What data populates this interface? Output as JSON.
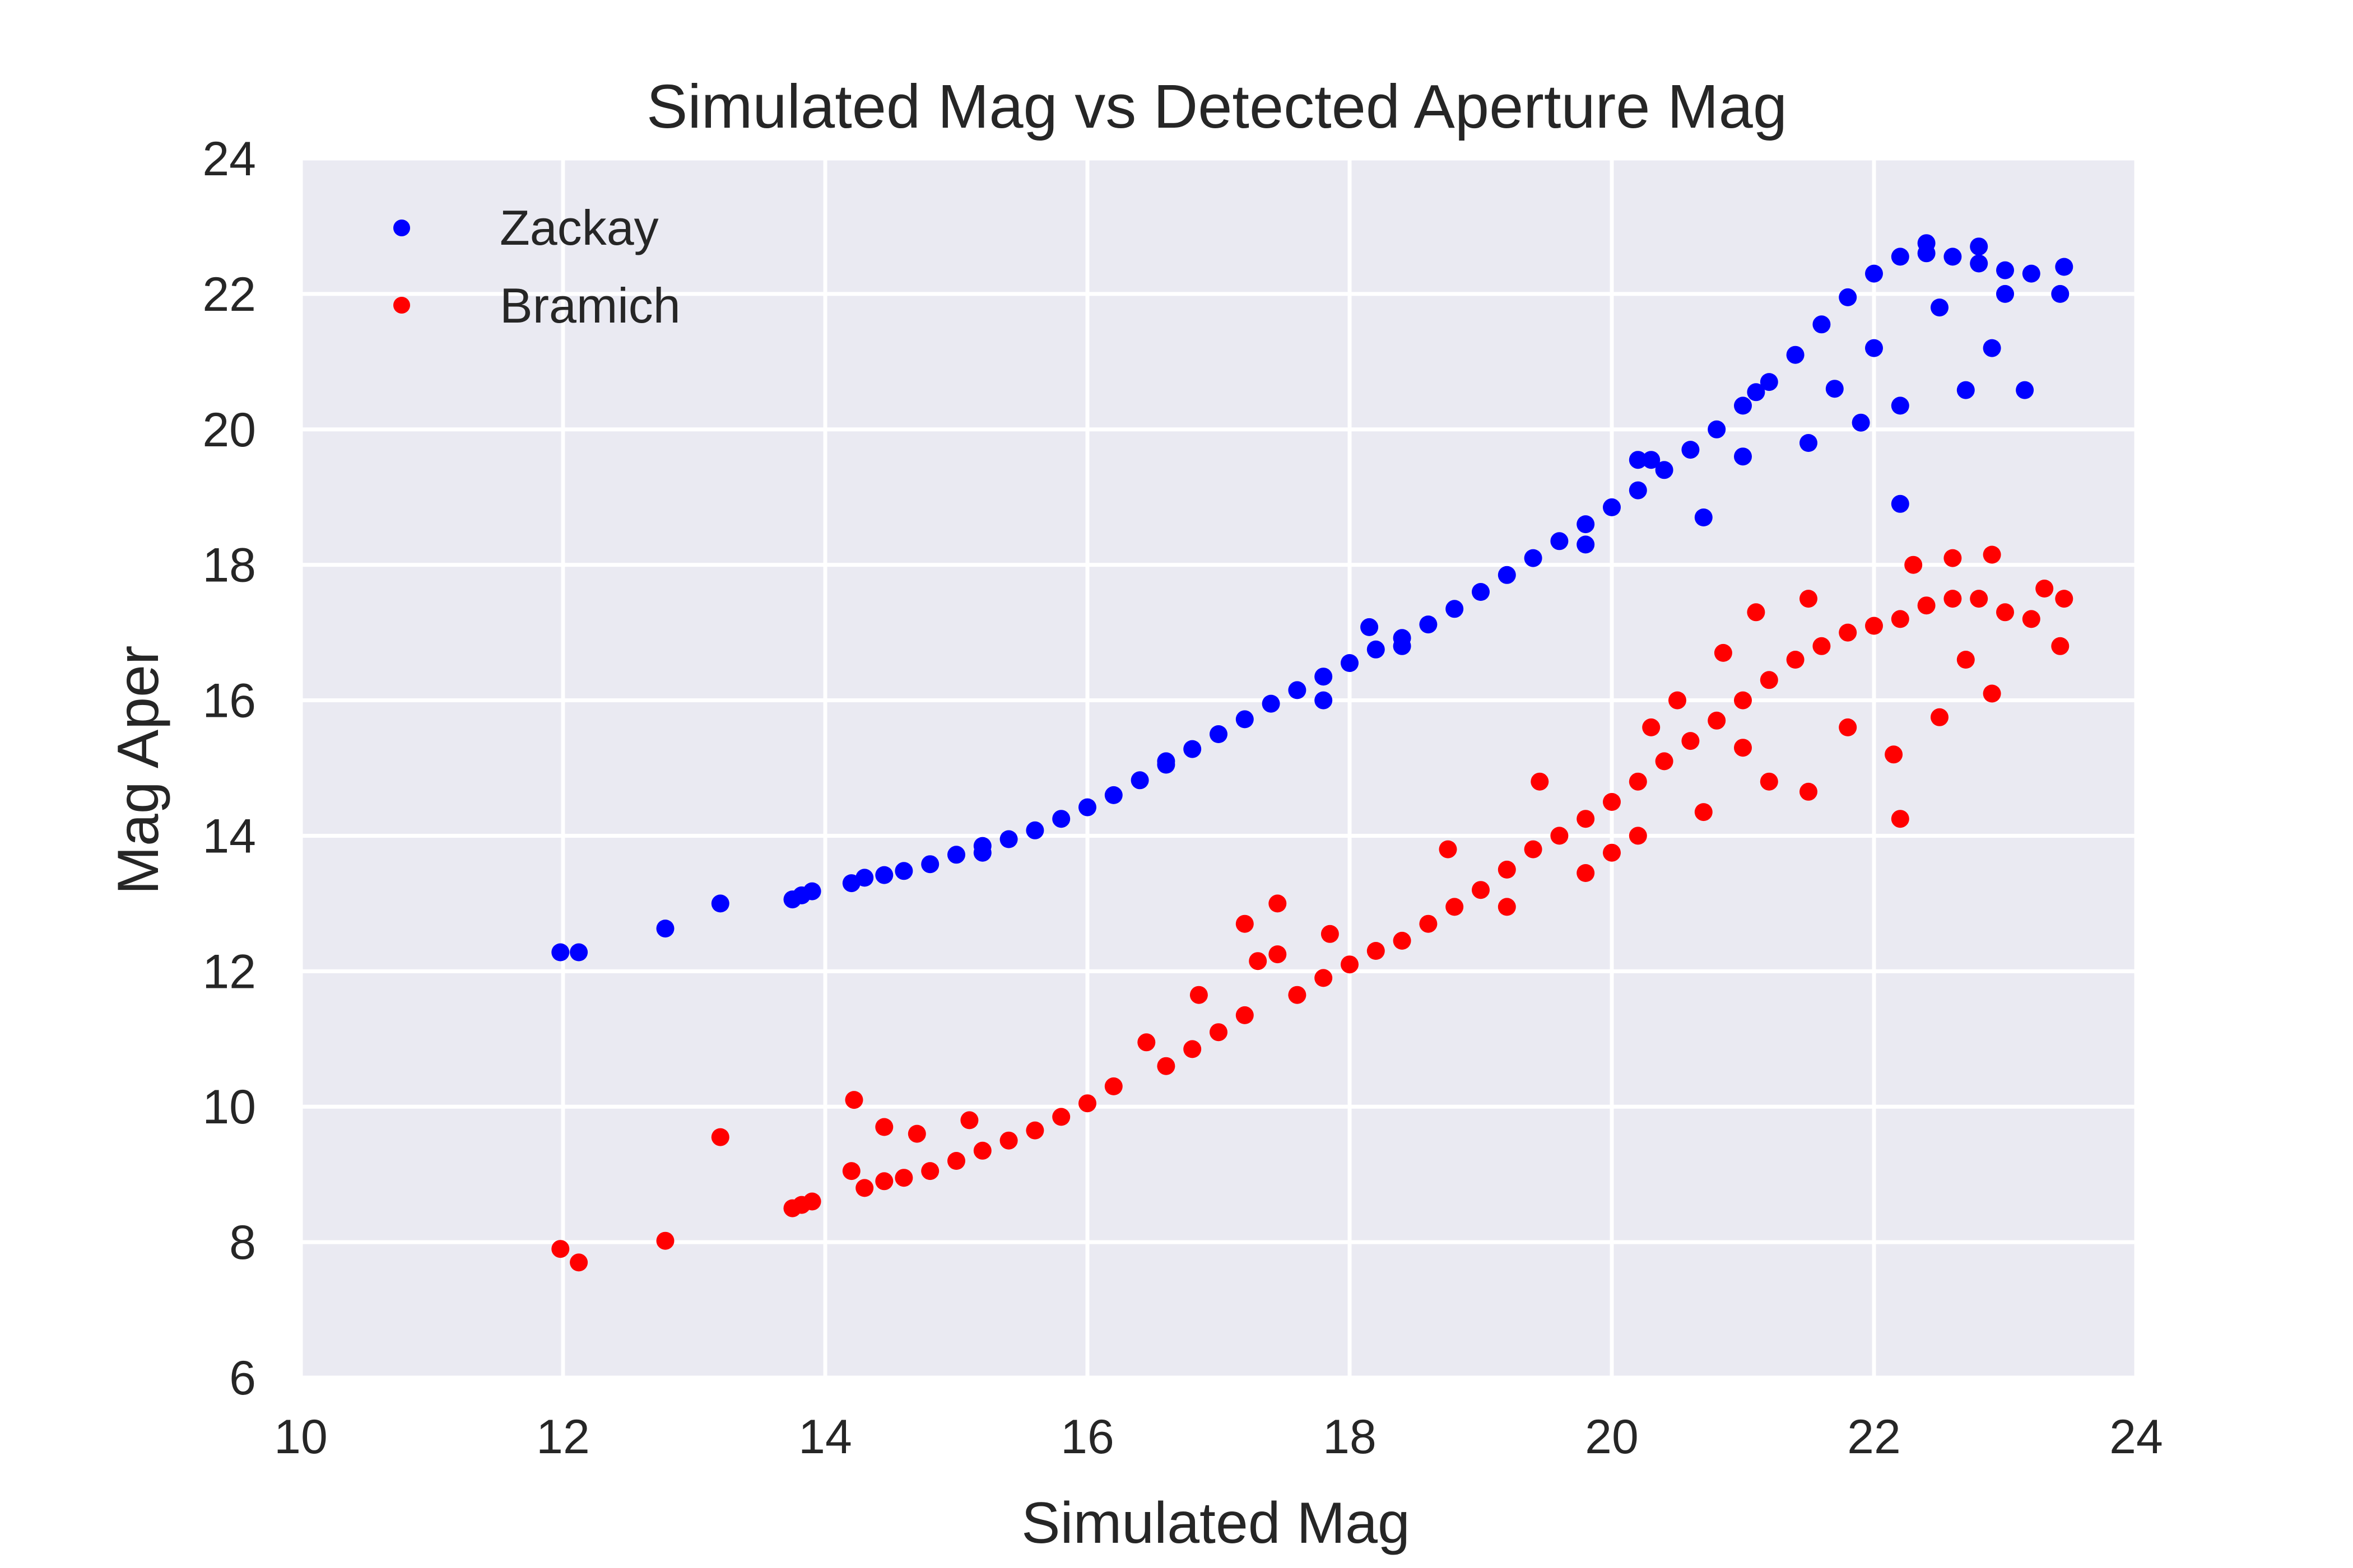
{
  "chart_data": {
    "type": "scatter",
    "title": "Simulated Mag vs Detected Aperture Mag",
    "xlabel": "Simulated Mag",
    "ylabel": "Mag Aper",
    "xlim": [
      10,
      24
    ],
    "ylim": [
      6,
      24
    ],
    "xticks": [
      "10",
      "12",
      "14",
      "16",
      "18",
      "20",
      "22",
      "24"
    ],
    "yticks": [
      "6",
      "8",
      "10",
      "12",
      "14",
      "16",
      "18",
      "20",
      "22",
      "24"
    ],
    "grid": true,
    "legend_position": "top-left",
    "background": "#eaeaf2",
    "series": [
      {
        "name": "Zackay",
        "color": "#0000ff",
        "points": [
          [
            11.98,
            12.28
          ],
          [
            12.12,
            12.28
          ],
          [
            12.78,
            12.63
          ],
          [
            13.2,
            13.0
          ],
          [
            13.75,
            13.06
          ],
          [
            13.82,
            13.12
          ],
          [
            13.9,
            13.18
          ],
          [
            14.2,
            13.3
          ],
          [
            14.3,
            13.38
          ],
          [
            14.45,
            13.42
          ],
          [
            14.6,
            13.48
          ],
          [
            14.8,
            13.58
          ],
          [
            15.0,
            13.72
          ],
          [
            15.2,
            13.85
          ],
          [
            15.4,
            13.95
          ],
          [
            15.6,
            14.08
          ],
          [
            15.8,
            14.25
          ],
          [
            16.0,
            14.42
          ],
          [
            16.2,
            14.6
          ],
          [
            16.4,
            14.82
          ],
          [
            16.6,
            15.05
          ],
          [
            16.8,
            15.28
          ],
          [
            17.0,
            15.5
          ],
          [
            17.2,
            15.72
          ],
          [
            17.4,
            15.95
          ],
          [
            17.6,
            16.15
          ],
          [
            17.8,
            16.35
          ],
          [
            18.0,
            16.55
          ],
          [
            18.2,
            16.75
          ],
          [
            18.15,
            17.08
          ],
          [
            18.4,
            16.92
          ],
          [
            18.6,
            17.12
          ],
          [
            18.8,
            17.35
          ],
          [
            19.0,
            17.6
          ],
          [
            19.2,
            17.85
          ],
          [
            19.4,
            18.1
          ],
          [
            19.6,
            18.35
          ],
          [
            19.8,
            18.6
          ],
          [
            20.0,
            18.85
          ],
          [
            20.2,
            19.1
          ],
          [
            20.4,
            19.4
          ],
          [
            20.2,
            19.55
          ],
          [
            20.6,
            19.7
          ],
          [
            20.8,
            20.0
          ],
          [
            21.0,
            20.35
          ],
          [
            21.2,
            20.7
          ],
          [
            21.4,
            21.1
          ],
          [
            21.6,
            21.55
          ],
          [
            21.8,
            21.95
          ],
          [
            22.0,
            22.3
          ],
          [
            22.2,
            22.55
          ],
          [
            22.4,
            22.6
          ],
          [
            22.6,
            22.55
          ],
          [
            22.8,
            22.45
          ],
          [
            23.0,
            22.35
          ],
          [
            23.2,
            22.3
          ],
          [
            23.45,
            22.4
          ],
          [
            23.42,
            22.0
          ],
          [
            22.2,
            18.9
          ],
          [
            23.15,
            20.58
          ],
          [
            22.7,
            20.58
          ],
          [
            21.9,
            20.1
          ],
          [
            22.2,
            20.35
          ],
          [
            21.5,
            19.8
          ],
          [
            20.7,
            18.7
          ],
          [
            18.4,
            16.8
          ],
          [
            17.8,
            16.0
          ],
          [
            16.6,
            15.1
          ],
          [
            15.2,
            13.75
          ],
          [
            19.8,
            18.3
          ],
          [
            21.0,
            19.6
          ],
          [
            21.7,
            20.6
          ],
          [
            22.0,
            21.2
          ],
          [
            22.5,
            21.8
          ],
          [
            22.9,
            21.2
          ],
          [
            23.0,
            22.0
          ],
          [
            22.8,
            22.7
          ],
          [
            22.4,
            22.75
          ],
          [
            21.1,
            20.55
          ],
          [
            20.3,
            19.55
          ]
        ]
      },
      {
        "name": "Bramich",
        "color": "#ff0000",
        "points": [
          [
            11.98,
            7.9
          ],
          [
            12.12,
            7.7
          ],
          [
            12.78,
            8.02
          ],
          [
            13.2,
            9.55
          ],
          [
            13.75,
            8.5
          ],
          [
            13.82,
            8.55
          ],
          [
            13.9,
            8.6
          ],
          [
            14.2,
            9.05
          ],
          [
            14.22,
            10.1
          ],
          [
            14.3,
            8.8
          ],
          [
            14.45,
            9.7
          ],
          [
            14.45,
            8.9
          ],
          [
            14.6,
            8.95
          ],
          [
            14.7,
            9.6
          ],
          [
            14.8,
            9.05
          ],
          [
            15.0,
            9.2
          ],
          [
            15.1,
            9.8
          ],
          [
            15.2,
            9.35
          ],
          [
            15.4,
            9.5
          ],
          [
            15.6,
            9.65
          ],
          [
            15.8,
            9.85
          ],
          [
            16.0,
            10.05
          ],
          [
            16.2,
            10.3
          ],
          [
            16.45,
            10.95
          ],
          [
            16.6,
            10.6
          ],
          [
            16.8,
            10.85
          ],
          [
            16.85,
            11.65
          ],
          [
            17.0,
            11.1
          ],
          [
            17.2,
            11.35
          ],
          [
            17.2,
            12.7
          ],
          [
            17.3,
            12.15
          ],
          [
            17.45,
            13.0
          ],
          [
            17.45,
            12.25
          ],
          [
            17.6,
            11.65
          ],
          [
            17.8,
            11.9
          ],
          [
            17.85,
            12.55
          ],
          [
            18.0,
            12.1
          ],
          [
            18.2,
            12.3
          ],
          [
            18.4,
            12.45
          ],
          [
            18.6,
            12.7
          ],
          [
            18.75,
            13.8
          ],
          [
            18.8,
            12.95
          ],
          [
            19.0,
            13.2
          ],
          [
            19.2,
            13.5
          ],
          [
            19.4,
            13.8
          ],
          [
            19.45,
            14.8
          ],
          [
            19.6,
            14.0
          ],
          [
            19.8,
            14.25
          ],
          [
            20.0,
            14.5
          ],
          [
            20.2,
            14.8
          ],
          [
            20.3,
            15.6
          ],
          [
            20.4,
            15.1
          ],
          [
            20.5,
            16.0
          ],
          [
            20.6,
            15.4
          ],
          [
            20.8,
            15.7
          ],
          [
            20.85,
            16.7
          ],
          [
            21.0,
            16.0
          ],
          [
            21.1,
            17.3
          ],
          [
            21.2,
            16.3
          ],
          [
            21.4,
            16.6
          ],
          [
            21.5,
            17.5
          ],
          [
            21.6,
            16.8
          ],
          [
            21.8,
            17.0
          ],
          [
            22.0,
            17.1
          ],
          [
            22.2,
            17.2
          ],
          [
            22.4,
            17.4
          ],
          [
            22.6,
            17.5
          ],
          [
            22.8,
            17.5
          ],
          [
            23.0,
            17.3
          ],
          [
            23.2,
            17.2
          ],
          [
            23.45,
            17.5
          ],
          [
            23.42,
            16.8
          ],
          [
            22.2,
            14.25
          ],
          [
            22.15,
            15.2
          ],
          [
            21.5,
            14.65
          ],
          [
            20.7,
            14.35
          ],
          [
            20.0,
            13.75
          ],
          [
            22.9,
            18.15
          ],
          [
            22.6,
            18.1
          ],
          [
            22.3,
            18.0
          ],
          [
            22.9,
            16.1
          ],
          [
            22.5,
            15.75
          ],
          [
            21.2,
            14.8
          ],
          [
            20.2,
            14.0
          ],
          [
            19.8,
            13.45
          ],
          [
            23.3,
            17.65
          ],
          [
            21.0,
            15.3
          ],
          [
            21.8,
            15.6
          ],
          [
            22.7,
            16.6
          ],
          [
            19.2,
            12.95
          ]
        ]
      }
    ]
  }
}
